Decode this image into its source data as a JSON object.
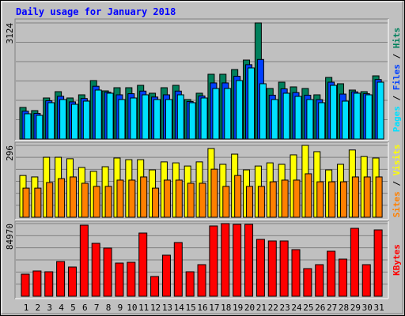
{
  "chart_data": [
    {
      "type": "bar",
      "title": "Daily usage for January 2018",
      "legend_separator": " / ",
      "ylim": [
        0,
        3124
      ],
      "yticks": [
        3124
      ],
      "grid": true,
      "series": [
        {
          "name": "Hits",
          "color": "#00805c",
          "values": [
            850,
            765,
            1105,
            1275,
            1105,
            1190,
            1573,
            1296,
            1381,
            1381,
            1445,
            1233,
            1381,
            1445,
            1063,
            1233,
            1743,
            1743,
            1870,
            2125,
            3124,
            1360,
            1530,
            1403,
            1360,
            1190,
            1658,
            1488,
            1318,
            1275,
            1700
          ]
        },
        {
          "name": "Files",
          "color": "#0040ff",
          "values": [
            750,
            690,
            1030,
            1150,
            1000,
            1090,
            1420,
            1260,
            1190,
            1220,
            1290,
            1130,
            1190,
            1290,
            1010,
            1160,
            1510,
            1510,
            1690,
            2000,
            2140,
            1180,
            1350,
            1250,
            1180,
            1060,
            1530,
            1210,
            1270,
            1220,
            1600
          ]
        },
        {
          "name": "Pages",
          "color": "#00e0ff",
          "values": [
            680,
            638,
            978,
            1063,
            935,
            1020,
            1318,
            1233,
            1063,
            1105,
            1190,
            1063,
            1063,
            1190,
            978,
            1105,
            1360,
            1360,
            1573,
            1913,
            1488,
            1063,
            1233,
            1148,
            1063,
            978,
            1445,
            1020,
            1233,
            1190,
            1530
          ]
        }
      ]
    },
    {
      "type": "bar",
      "legend_separator": " / ",
      "ylim": [
        0,
        296
      ],
      "yticks": [
        296
      ],
      "grid": true,
      "series": [
        {
          "name": "Visits",
          "color": "#ffff00",
          "values": [
            172,
            166,
            247,
            247,
            241,
            205,
            189,
            208,
            244,
            237,
            237,
            195,
            228,
            224,
            211,
            228,
            283,
            218,
            260,
            195,
            211,
            224,
            218,
            257,
            296,
            270,
            195,
            218,
            277,
            250,
            244
          ]
        },
        {
          "name": "Sites",
          "color": "#ff8000",
          "values": [
            120,
            120,
            143,
            159,
            166,
            140,
            127,
            127,
            153,
            153,
            166,
            120,
            153,
            153,
            140,
            140,
            198,
            127,
            172,
            127,
            127,
            146,
            153,
            153,
            179,
            146,
            146,
            146,
            166,
            166,
            166
          ]
        }
      ]
    },
    {
      "type": "bar",
      "legend_separator": " / ",
      "ylim": [
        0,
        84970
      ],
      "yticks": [
        84970
      ],
      "grid": true,
      "categories": [
        "1",
        "2",
        "3",
        "4",
        "5",
        "6",
        "7",
        "8",
        "9",
        "10",
        "11",
        "12",
        "13",
        "14",
        "15",
        "16",
        "17",
        "18",
        "19",
        "20",
        "21",
        "22",
        "23",
        "24",
        "25",
        "26",
        "27",
        "28",
        "29",
        "30",
        "31"
      ],
      "highlight_indices": [
        5,
        6,
        12,
        13,
        19,
        20,
        26,
        27
      ],
      "highlight_color": "#00805c",
      "series": [
        {
          "name": "KBytes",
          "color": "#ff0000",
          "values": [
            25860,
            29555,
            28630,
            40637,
            34174,
            83122,
            61877,
            56336,
            38790,
            39714,
            73887,
            23090,
            48025,
            62800,
            28630,
            36943,
            82200,
            84970,
            84047,
            84047,
            66496,
            64650,
            64650,
            54490,
            32325,
            36943,
            52643,
            43408,
            79425,
            36943,
            77578
          ]
        }
      ]
    }
  ]
}
